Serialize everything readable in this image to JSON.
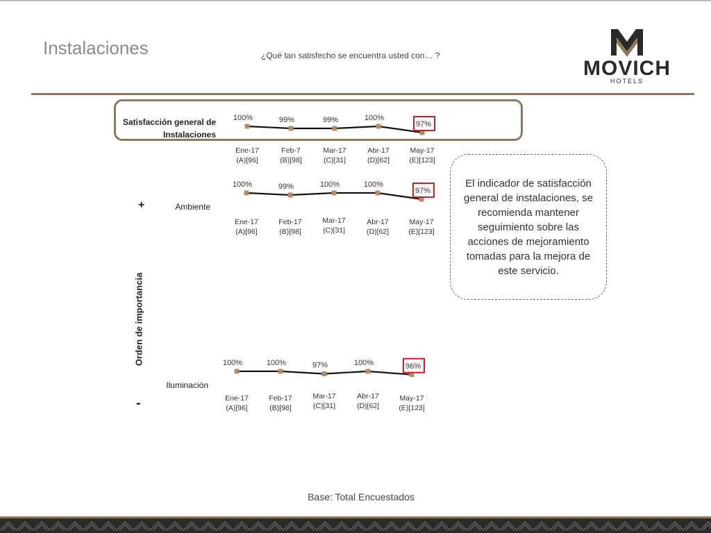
{
  "page": {
    "title": "Instalaciones",
    "question": "¿Qué tan satisfecho se encuentra usted con… ?",
    "base": "Base: Total Encuestados",
    "axis_label": "Orden de importancia",
    "plus": "+",
    "minus": "-",
    "note": "El indicador de satisfacción general  de instalaciones, se recomienda mantener seguimiento sobre las acciones de mejoramiento tomadas para la mejora de este servicio."
  },
  "logo": {
    "name": "MOVICH",
    "sub": "HOTELS",
    "color": "#2a2a2a",
    "accent": "#8c7a5b"
  },
  "colors": {
    "gold": "#8c7a5b",
    "marker": "#b08e6a",
    "line": "#111111",
    "highlight": "#c0212b"
  },
  "chart_data": [
    {
      "type": "line",
      "label": "Satisfacción general de Instalaciones",
      "categories": [
        "Ene-17\n(A)[96]",
        "Feb-7\n(B)[98]",
        "Mar-17\n(C)[31]",
        "Abr-17\n(D)[62]",
        "May-17\n(E)[123]"
      ],
      "values": [
        100,
        99,
        99,
        100,
        97
      ],
      "value_labels": [
        "100%",
        "99%",
        "99%",
        "100%",
        "97%"
      ],
      "highlight_index": 4
    },
    {
      "type": "line",
      "label": "Ambiente",
      "categories": [
        "Ene-17\n(A)[96]",
        "Feb-17\n(B)[98]",
        "Mar-17\n(C)[31]",
        "Abr-17\n(D)[62]",
        "May-17\n(E)[123]"
      ],
      "values": [
        100,
        99,
        100,
        100,
        97
      ],
      "value_labels": [
        "100%",
        "99%",
        "100%",
        "100%",
        "97%"
      ],
      "highlight_index": 4
    },
    {
      "type": "line",
      "label": "Iluminación",
      "categories": [
        "Ene-17\n(A)[96]",
        "Feb-17\n(B)[98]",
        "Mar-17\n(C)[31]",
        "Abr-17\n(D)[62]",
        "May-17\n(E)[123]"
      ],
      "values": [
        100,
        100,
        97,
        100,
        96
      ],
      "value_labels": [
        "100%",
        "100%",
        "97%",
        "100%",
        "96%"
      ],
      "highlight_index": 4
    }
  ]
}
